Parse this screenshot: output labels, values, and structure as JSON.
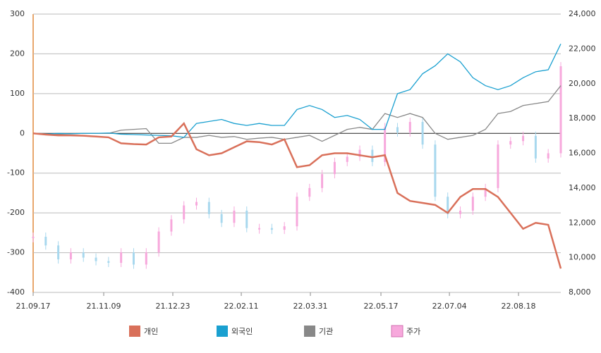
{
  "chart_data": {
    "type": "line",
    "x": [
      0,
      6,
      12,
      18,
      24,
      30,
      36,
      42,
      48,
      54,
      60,
      66,
      72,
      78,
      84,
      90,
      96,
      102,
      108,
      114,
      120,
      126,
      132,
      138,
      144,
      150,
      156,
      162,
      168,
      174,
      180,
      186,
      192,
      198,
      204,
      210,
      216,
      222,
      228,
      234,
      240,
      246,
      252
    ],
    "xlim": [
      0,
      252
    ],
    "xticks": [
      {
        "value": 0,
        "label": "21.09.17"
      },
      {
        "value": 33.7,
        "label": "21.11.09"
      },
      {
        "value": 66.7,
        "label": "21.12.23"
      },
      {
        "value": 99.4,
        "label": "22.02.11"
      },
      {
        "value": 132.4,
        "label": "22.03.31"
      },
      {
        "value": 166.1,
        "label": "22.05.17"
      },
      {
        "value": 198.8,
        "label": "22.07.04"
      },
      {
        "value": 231.8,
        "label": "22.08.18"
      }
    ],
    "ylim": [
      -400,
      300
    ],
    "yticks": [
      -400,
      -300,
      -200,
      -100,
      0,
      100,
      200,
      300
    ],
    "y2lim": [
      8000,
      24000
    ],
    "y2ticks": [
      {
        "value": 8000,
        "label": "8,000"
      },
      {
        "value": 10000,
        "label": "10,000"
      },
      {
        "value": 12000,
        "label": "12,000"
      },
      {
        "value": 14000,
        "label": "14,000"
      },
      {
        "value": 16000,
        "label": "16,000"
      },
      {
        "value": 18000,
        "label": "18,000"
      },
      {
        "value": 20000,
        "label": "20,000"
      },
      {
        "value": 22000,
        "label": "22,000"
      },
      {
        "value": 24000,
        "label": "24,000"
      }
    ],
    "grid": true,
    "series": [
      {
        "name": "개인",
        "color": "#d9705a",
        "values": [
          0,
          -3,
          -5,
          -5,
          -6,
          -8,
          -10,
          -25,
          -27,
          -28,
          -10,
          -8,
          25,
          -40,
          -55,
          -50,
          -35,
          -20,
          -22,
          -28,
          -15,
          -85,
          -80,
          -55,
          -50,
          -50,
          -55,
          -60,
          -55,
          -150,
          -170,
          -175,
          -180,
          -200,
          -160,
          -140,
          -140,
          -160,
          -200,
          -240,
          -225,
          -230,
          -340
        ]
      },
      {
        "name": "외국인",
        "color": "#1aa0d0",
        "values": [
          0,
          -2,
          0,
          -1,
          0,
          0,
          1,
          -2,
          -3,
          -4,
          -5,
          -6,
          -10,
          25,
          30,
          35,
          25,
          20,
          25,
          20,
          20,
          60,
          70,
          60,
          40,
          45,
          35,
          10,
          10,
          100,
          110,
          150,
          170,
          200,
          180,
          140,
          120,
          110,
          120,
          140,
          155,
          160,
          225
        ]
      },
      {
        "name": "기관",
        "color": "#888888",
        "values": [
          0,
          -1,
          -2,
          -1,
          0,
          0,
          0,
          8,
          10,
          12,
          -25,
          -25,
          -10,
          -10,
          -5,
          -10,
          -8,
          -15,
          -12,
          -10,
          -15,
          -10,
          -5,
          -20,
          -5,
          10,
          15,
          10,
          50,
          40,
          50,
          40,
          0,
          -15,
          -10,
          -5,
          10,
          50,
          55,
          70,
          75,
          80,
          120
        ]
      },
      {
        "name": "주가",
        "color": "#f7a8dc",
        "axis": "y2",
        "values": [
          11200,
          10700,
          9900,
          10300,
          10000,
          9800,
          9700,
          10300,
          9600,
          10300,
          11500,
          12200,
          13000,
          13200,
          12500,
          12000,
          12700,
          11700,
          11700,
          11600,
          11800,
          13500,
          14000,
          14800,
          15500,
          15800,
          16200,
          15500,
          17500,
          17200,
          17800,
          16500,
          13500,
          12500,
          12700,
          13500,
          14000,
          16500,
          16700,
          17000,
          15700,
          16000,
          21000
        ]
      }
    ]
  }
}
